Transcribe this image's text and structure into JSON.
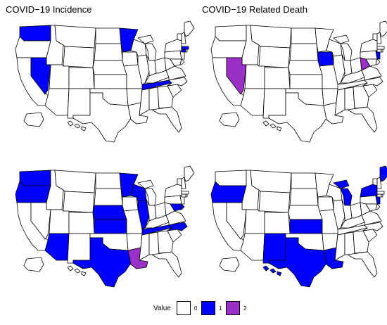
{
  "panels": {
    "top_left_title": "COVID−19 Incidence",
    "top_right_title": "COVID−19 Related Death"
  },
  "colors": {
    "0": "#ffffff",
    "1": "#0000ff",
    "2": "#9b30c8"
  },
  "maps": [
    {
      "id": "top-left",
      "highlighted": {
        "1": [
          "WA",
          "NV",
          "MN",
          "TN",
          "CT",
          "MA"
        ]
      }
    },
    {
      "id": "top-right",
      "highlighted": {
        "1": [
          "IA",
          "NJ"
        ],
        "2": [
          "NV",
          "WV"
        ]
      }
    },
    {
      "id": "bottom-left",
      "highlighted": {
        "1": [
          "WA",
          "OR",
          "AZ",
          "NE",
          "KS",
          "MN",
          "WI",
          "IL",
          "TX",
          "NC",
          "TN",
          "MD",
          "DE"
        ],
        "2": [
          "LA"
        ]
      }
    },
    {
      "id": "bottom-right",
      "highlighted": {
        "1": [
          "OR",
          "NM",
          "KS",
          "TX",
          "LA",
          "MI",
          "NY",
          "ME",
          "NJ",
          "HI"
        ]
      }
    }
  ],
  "legend": {
    "title": "Value",
    "items": [
      {
        "label": "0",
        "value": "0"
      },
      {
        "label": "1",
        "value": "1"
      },
      {
        "label": "2",
        "value": "2"
      }
    ]
  }
}
